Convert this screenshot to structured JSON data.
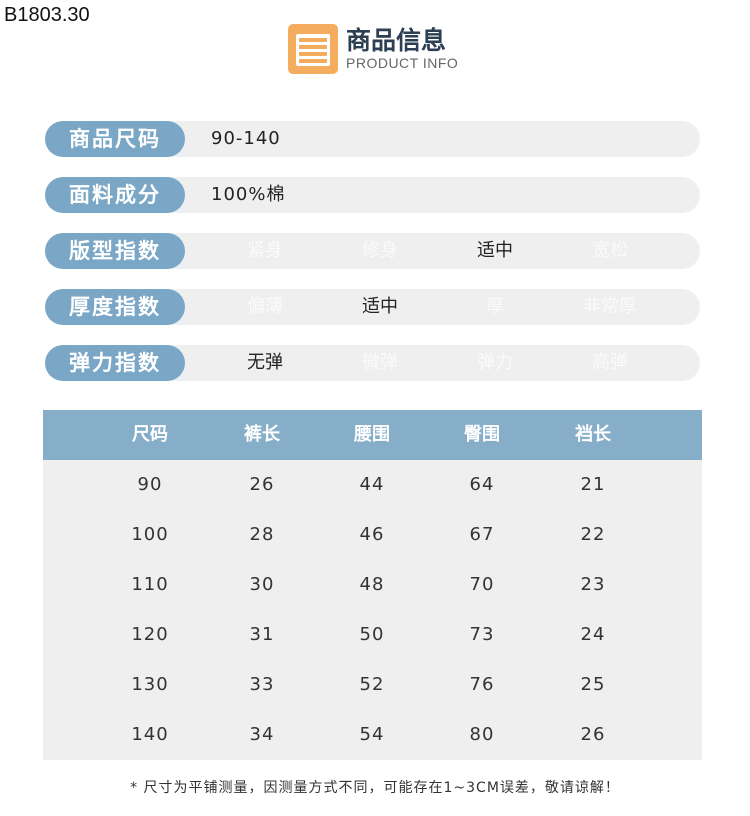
{
  "code": "B1803.30",
  "header": {
    "title": "商品信息",
    "subtitle": "PRODUCT INFO",
    "icon": "list-icon",
    "icon_color": "#f4ac5f"
  },
  "rows": [
    {
      "label": "商品尺码",
      "value": "90-140"
    },
    {
      "label": "面料成分",
      "value": "100%棉"
    },
    {
      "label": "版型指数",
      "options": [
        "紧身",
        "修身",
        "适中",
        "宽松"
      ],
      "selected": 2
    },
    {
      "label": "厚度指数",
      "options": [
        "偏薄",
        "适中",
        "厚",
        "非常厚"
      ],
      "selected": 1
    },
    {
      "label": "弹力指数",
      "options": [
        "无弹",
        "微弹",
        "弹力",
        "高弹"
      ],
      "selected": 0
    }
  ],
  "accent": "#7ba7c6",
  "table": {
    "headers": [
      "尺码",
      "裤长",
      "腰围",
      "臀围",
      "裆长"
    ],
    "rows": [
      [
        "90",
        "26",
        "44",
        "64",
        "21"
      ],
      [
        "100",
        "28",
        "46",
        "67",
        "22"
      ],
      [
        "110",
        "30",
        "48",
        "70",
        "23"
      ],
      [
        "120",
        "31",
        "50",
        "73",
        "24"
      ],
      [
        "130",
        "33",
        "52",
        "76",
        "25"
      ],
      [
        "140",
        "34",
        "54",
        "80",
        "26"
      ]
    ]
  },
  "note": "* 尺寸为平铺测量，因测量方式不同，可能存在1~3CM误差，敬请谅解！"
}
